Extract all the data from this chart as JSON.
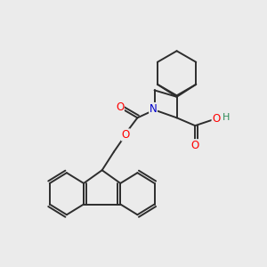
{
  "background_color": "#ebebeb",
  "bond_color": "#2d2d2d",
  "atom_colors": {
    "N": "#0000cc",
    "O": "#ff0000",
    "OH_O": "#ff0000",
    "OH_H": "#2e8b57",
    "C": "#2d2d2d"
  },
  "figsize": [
    3.0,
    3.0
  ],
  "dpi": 100,
  "lw": 1.4
}
